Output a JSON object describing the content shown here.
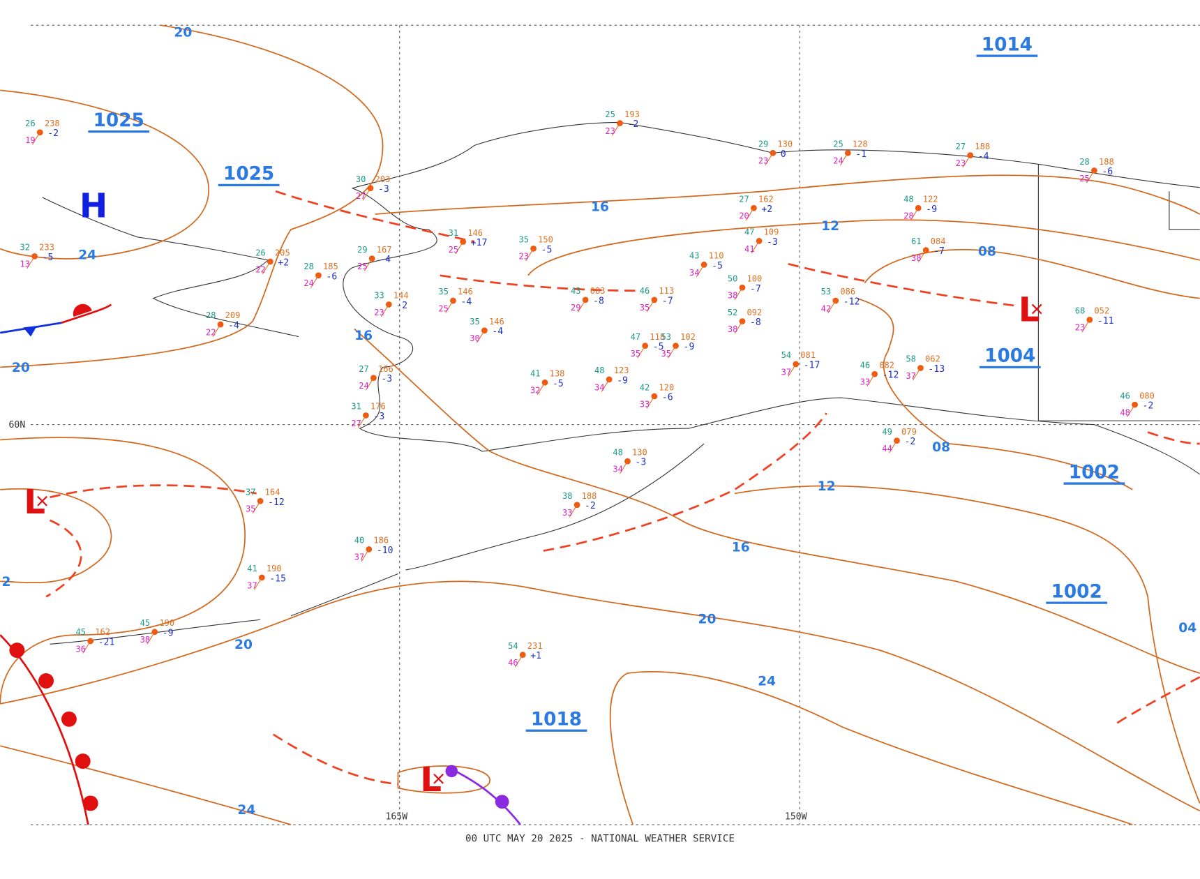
{
  "footer": "00 UTC MAY 20 2025 - NATIONAL WEATHER SERVICE",
  "grid_labels": [
    "60N",
    "165W",
    "150W"
  ],
  "pressure_centers": [
    "1025",
    "1025",
    "1014",
    "1004",
    "1002",
    "1002",
    "1018"
  ],
  "systems": [
    "H",
    "L",
    "L",
    "L"
  ],
  "isobar_labels": [
    "20",
    "24",
    "20",
    "16",
    "12",
    "08",
    "16",
    "08",
    "12",
    "16",
    "20",
    "20",
    "24",
    "24",
    "2",
    "04"
  ],
  "stations": [
    {
      "t": "26",
      "p": "238",
      "d": "19",
      "tend": "-2"
    },
    {
      "t": "32",
      "p": "233",
      "d": "13",
      "tend": "-5"
    },
    {
      "t": "26",
      "p": "205",
      "d": "22",
      "tend": "+2"
    },
    {
      "t": "28",
      "p": "209",
      "d": "22",
      "tend": "-4"
    },
    {
      "t": "30",
      "p": "203",
      "d": "27",
      "tend": "-3"
    },
    {
      "t": "25",
      "p": "193",
      "d": "23",
      "tend": "-2"
    },
    {
      "t": "29",
      "p": "130",
      "d": "23",
      "tend": "0"
    },
    {
      "t": "25",
      "p": "128",
      "d": "24",
      "tend": "-1"
    },
    {
      "t": "27",
      "p": "188",
      "d": "23",
      "tend": "-4"
    },
    {
      "t": "28",
      "p": "188",
      "d": "25",
      "tend": "-6"
    },
    {
      "t": "27",
      "p": "162",
      "d": "20",
      "tend": "+2"
    },
    {
      "t": "48",
      "p": "122",
      "d": "28",
      "tend": "-9"
    },
    {
      "t": "47",
      "p": "109",
      "d": "41",
      "tend": "-3"
    },
    {
      "t": "35",
      "p": "150",
      "d": "23",
      "tend": "-5"
    },
    {
      "t": "31",
      "p": "146",
      "d": "25",
      "tend": "+17"
    },
    {
      "t": "29",
      "p": "167",
      "d": "25",
      "tend": "-4"
    },
    {
      "t": "28",
      "p": "185",
      "d": "24",
      "tend": "-6"
    },
    {
      "t": "35",
      "p": "146",
      "d": "25",
      "tend": "-4"
    },
    {
      "t": "33",
      "p": "144",
      "d": "23",
      "tend": "-2"
    },
    {
      "t": "35",
      "p": "146",
      "d": "30",
      "tend": "-4"
    },
    {
      "t": "43",
      "p": "110",
      "d": "34",
      "tend": "-5"
    },
    {
      "t": "50",
      "p": "100",
      "d": "38",
      "tend": "-7"
    },
    {
      "t": "43",
      "p": "083",
      "d": "29",
      "tend": "-8"
    },
    {
      "t": "46",
      "p": "113",
      "d": "35",
      "tend": "-7"
    },
    {
      "t": "52",
      "p": "092",
      "d": "38",
      "tend": "-8"
    },
    {
      "t": "47",
      "p": "118",
      "d": "35",
      "tend": "-5"
    },
    {
      "t": "53",
      "p": "102",
      "d": "35",
      "tend": "-9"
    },
    {
      "t": "53",
      "p": "086",
      "d": "42",
      "tend": "-12"
    },
    {
      "t": "61",
      "p": "084",
      "d": "38",
      "tend": "-7"
    },
    {
      "t": "54",
      "p": "081",
      "d": "37",
      "tend": "-17"
    },
    {
      "t": "48",
      "p": "123",
      "d": "34",
      "tend": "-9"
    },
    {
      "t": "41",
      "p": "138",
      "d": "32",
      "tend": "-5"
    },
    {
      "t": "42",
      "p": "120",
      "d": "33",
      "tend": "-6"
    },
    {
      "t": "27",
      "p": "166",
      "d": "24",
      "tend": "-3"
    },
    {
      "t": "31",
      "p": "176",
      "d": "27",
      "tend": "-3"
    },
    {
      "t": "58",
      "p": "062",
      "d": "37",
      "tend": "-13"
    },
    {
      "t": "46",
      "p": "082",
      "d": "33",
      "tend": "-12"
    },
    {
      "t": "46",
      "p": "080",
      "d": "48",
      "tend": "-2"
    },
    {
      "t": "68",
      "p": "052",
      "d": "23",
      "tend": "-11"
    },
    {
      "t": "48",
      "p": "130",
      "d": "34",
      "tend": "-3"
    },
    {
      "t": "38",
      "p": "188",
      "d": "33",
      "tend": "-2"
    },
    {
      "t": "37",
      "p": "164",
      "d": "35",
      "tend": "-12"
    },
    {
      "t": "40",
      "p": "186",
      "d": "37",
      "tend": "-10"
    },
    {
      "t": "41",
      "p": "190",
      "d": "37",
      "tend": "-15"
    },
    {
      "t": "54",
      "p": "231",
      "d": "46",
      "tend": "+1"
    },
    {
      "t": "45",
      "p": "162",
      "d": "36",
      "tend": "-21"
    },
    {
      "t": "45",
      "p": "190",
      "d": "38",
      "tend": "-9"
    },
    {
      "t": "49",
      "p": "079",
      "d": "44",
      "tend": "-2"
    }
  ]
}
